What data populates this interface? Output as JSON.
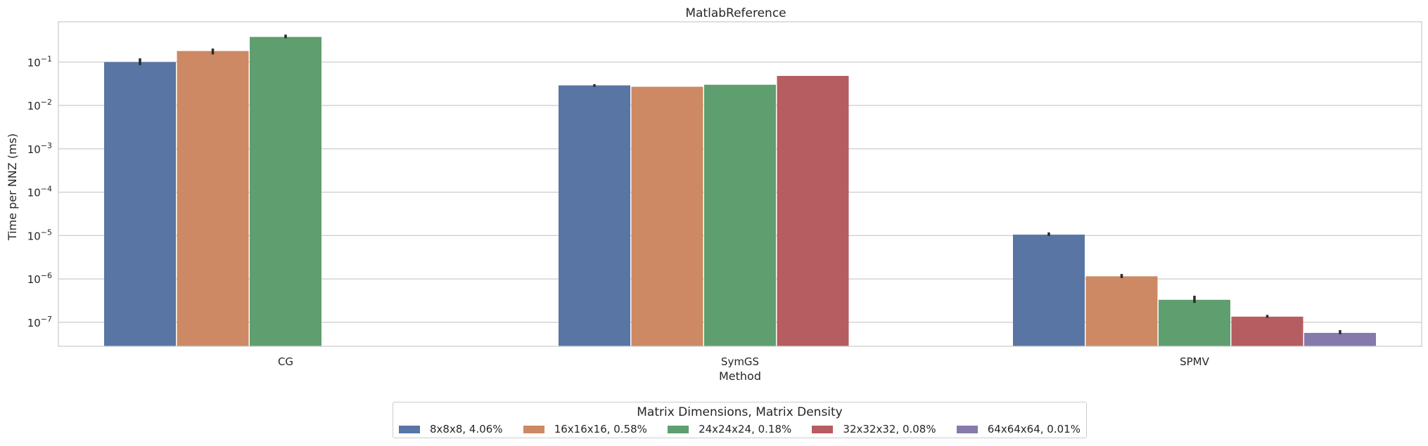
{
  "chart_data": {
    "type": "bar",
    "title": "MatlabReference",
    "xlabel": "Method",
    "ylabel": "Time per NNZ (ms)",
    "yscale": "log",
    "ylim": [
      2.8e-08,
      0.85
    ],
    "yticks": [
      {
        "value": 1e-07,
        "base": "10",
        "exp": "−7"
      },
      {
        "value": 1e-06,
        "base": "10",
        "exp": "−6"
      },
      {
        "value": 1e-05,
        "base": "10",
        "exp": "−5"
      },
      {
        "value": 0.0001,
        "base": "10",
        "exp": "−4"
      },
      {
        "value": 0.001,
        "base": "10",
        "exp": "−3"
      },
      {
        "value": 0.01,
        "base": "10",
        "exp": "−2"
      },
      {
        "value": 0.1,
        "base": "10",
        "exp": "−1"
      }
    ],
    "grid": "horizontal",
    "legend_position": "bottom-center",
    "legend_title": "Matrix Dimensions, Matrix Density",
    "categories": [
      "CG",
      "SymGS",
      "SPMV"
    ],
    "series": [
      {
        "name": "8x8x8, 4.06%",
        "color": "#5875a4",
        "values": [
          0.1,
          0.029,
          1.05e-05
        ],
        "err_low": [
          0.085,
          0.027,
          9.8e-06
        ],
        "err_high": [
          0.122,
          0.031,
          1.18e-05
        ]
      },
      {
        "name": "16x16x16, 0.58%",
        "color": "#cc8963",
        "values": [
          0.18,
          0.027,
          1.15e-06
        ],
        "err_low": [
          0.15,
          null,
          1.05e-06
        ],
        "err_high": [
          0.205,
          null,
          1.3e-06
        ]
      },
      {
        "name": "24x24x24, 0.18%",
        "color": "#5f9e6e",
        "values": [
          0.38,
          0.03,
          3.3e-07
        ],
        "err_low": [
          0.355,
          null,
          2.8e-07
        ],
        "err_high": [
          0.43,
          null,
          4.1e-07
        ]
      },
      {
        "name": "32x32x32, 0.08%",
        "color": "#b55d60",
        "values": [
          null,
          0.048,
          1.35e-07
        ],
        "err_low": [
          null,
          null,
          1.27e-07
        ],
        "err_high": [
          null,
          null,
          1.48e-07
        ]
      },
      {
        "name": "64x64x64, 0.01%",
        "color": "#857aab",
        "values": [
          null,
          null,
          5.7e-08
        ],
        "err_low": [
          null,
          null,
          5.3e-08
        ],
        "err_high": [
          null,
          null,
          6.6e-08
        ]
      }
    ]
  }
}
